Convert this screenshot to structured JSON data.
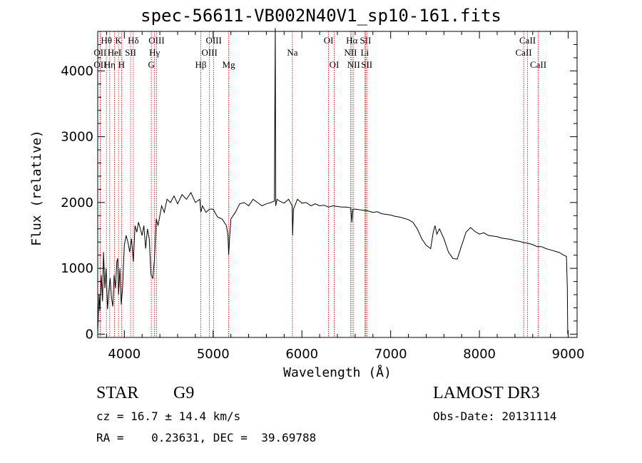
{
  "chart_data": {
    "type": "line",
    "title": "spec-56611-VB002N40V1_sp10-161.fits",
    "xlabel": "Wavelength (Å)",
    "ylabel": "Flux (relative)",
    "xlim": [
      3700,
      9100
    ],
    "ylim": [
      -50,
      4600
    ],
    "x_ticks": [
      4000,
      5000,
      6000,
      7000,
      8000,
      9000
    ],
    "y_ticks": [
      0,
      1000,
      2000,
      3000,
      4000
    ],
    "line_color": "#000000",
    "marker_color": "#cc0000",
    "series": [
      {
        "name": "spectrum",
        "points": [
          [
            3700,
            30
          ],
          [
            3715,
            600
          ],
          [
            3725,
            350
          ],
          [
            3740,
            900
          ],
          [
            3755,
            500
          ],
          [
            3765,
            1250
          ],
          [
            3780,
            700
          ],
          [
            3795,
            1000
          ],
          [
            3810,
            380
          ],
          [
            3825,
            650
          ],
          [
            3840,
            850
          ],
          [
            3855,
            550
          ],
          [
            3870,
            420
          ],
          [
            3885,
            900
          ],
          [
            3900,
            700
          ],
          [
            3915,
            1100
          ],
          [
            3925,
            1150
          ],
          [
            3935,
            600
          ],
          [
            3950,
            1000
          ],
          [
            3965,
            450
          ],
          [
            3980,
            700
          ],
          [
            4000,
            1350
          ],
          [
            4020,
            1500
          ],
          [
            4040,
            1400
          ],
          [
            4060,
            1250
          ],
          [
            4080,
            1450
          ],
          [
            4101,
            1100
          ],
          [
            4120,
            1650
          ],
          [
            4140,
            1550
          ],
          [
            4160,
            1700
          ],
          [
            4180,
            1600
          ],
          [
            4200,
            1500
          ],
          [
            4220,
            1650
          ],
          [
            4240,
            1300
          ],
          [
            4260,
            1600
          ],
          [
            4280,
            1450
          ],
          [
            4300,
            900
          ],
          [
            4320,
            850
          ],
          [
            4340,
            1150
          ],
          [
            4360,
            1750
          ],
          [
            4380,
            1650
          ],
          [
            4400,
            1800
          ],
          [
            4420,
            1950
          ],
          [
            4450,
            1850
          ],
          [
            4480,
            2050
          ],
          [
            4520,
            2000
          ],
          [
            4560,
            2100
          ],
          [
            4600,
            1980
          ],
          [
            4650,
            2120
          ],
          [
            4700,
            2050
          ],
          [
            4750,
            2150
          ],
          [
            4800,
            2000
          ],
          [
            4850,
            2050
          ],
          [
            4861,
            1850
          ],
          [
            4880,
            1950
          ],
          [
            4920,
            1850
          ],
          [
            4960,
            1900
          ],
          [
            5000,
            1900
          ],
          [
            5050,
            1780
          ],
          [
            5100,
            1750
          ],
          [
            5150,
            1650
          ],
          [
            5167,
            1500
          ],
          [
            5175,
            1200
          ],
          [
            5185,
            1450
          ],
          [
            5200,
            1750
          ],
          [
            5250,
            1850
          ],
          [
            5300,
            1980
          ],
          [
            5350,
            2000
          ],
          [
            5400,
            1950
          ],
          [
            5450,
            2050
          ],
          [
            5500,
            2000
          ],
          [
            5550,
            1950
          ],
          [
            5600,
            1980
          ],
          [
            5650,
            2000
          ],
          [
            5690,
            2020
          ],
          [
            5700,
            4650
          ],
          [
            5705,
            1950
          ],
          [
            5720,
            2050
          ],
          [
            5750,
            2020
          ],
          [
            5800,
            1990
          ],
          [
            5850,
            2050
          ],
          [
            5890,
            1950
          ],
          [
            5895,
            1500
          ],
          [
            5905,
            1900
          ],
          [
            5950,
            2050
          ],
          [
            6000,
            1990
          ],
          [
            6050,
            2000
          ],
          [
            6100,
            1950
          ],
          [
            6150,
            1980
          ],
          [
            6200,
            1950
          ],
          [
            6250,
            1960
          ],
          [
            6300,
            1930
          ],
          [
            6350,
            1950
          ],
          [
            6400,
            1940
          ],
          [
            6450,
            1930
          ],
          [
            6500,
            1930
          ],
          [
            6550,
            1920
          ],
          [
            6563,
            1700
          ],
          [
            6575,
            1900
          ],
          [
            6600,
            1900
          ],
          [
            6650,
            1890
          ],
          [
            6700,
            1880
          ],
          [
            6750,
            1870
          ],
          [
            6800,
            1850
          ],
          [
            6850,
            1860
          ],
          [
            6900,
            1830
          ],
          [
            6950,
            1820
          ],
          [
            7000,
            1810
          ],
          [
            7050,
            1790
          ],
          [
            7100,
            1780
          ],
          [
            7150,
            1760
          ],
          [
            7200,
            1740
          ],
          [
            7250,
            1700
          ],
          [
            7300,
            1600
          ],
          [
            7350,
            1450
          ],
          [
            7400,
            1350
          ],
          [
            7450,
            1300
          ],
          [
            7480,
            1550
          ],
          [
            7500,
            1650
          ],
          [
            7520,
            1520
          ],
          [
            7550,
            1600
          ],
          [
            7600,
            1450
          ],
          [
            7650,
            1250
          ],
          [
            7700,
            1150
          ],
          [
            7750,
            1140
          ],
          [
            7800,
            1350
          ],
          [
            7850,
            1550
          ],
          [
            7900,
            1620
          ],
          [
            7950,
            1560
          ],
          [
            8000,
            1520
          ],
          [
            8050,
            1540
          ],
          [
            8100,
            1500
          ],
          [
            8150,
            1490
          ],
          [
            8200,
            1480
          ],
          [
            8250,
            1460
          ],
          [
            8300,
            1450
          ],
          [
            8350,
            1440
          ],
          [
            8400,
            1420
          ],
          [
            8450,
            1410
          ],
          [
            8500,
            1390
          ],
          [
            8550,
            1380
          ],
          [
            8600,
            1360
          ],
          [
            8650,
            1330
          ],
          [
            8700,
            1330
          ],
          [
            8750,
            1300
          ],
          [
            8800,
            1280
          ],
          [
            8850,
            1260
          ],
          [
            8900,
            1240
          ],
          [
            8950,
            1200
          ],
          [
            8980,
            1180
          ],
          [
            8990,
            700
          ],
          [
            8995,
            0
          ]
        ]
      }
    ],
    "line_markers": [
      {
        "label": "Hθ",
        "x": 3798,
        "row": 1
      },
      {
        "label": "OII",
        "x": 3727,
        "row": 2
      },
      {
        "label": "OII",
        "x": 3727,
        "row": 3
      },
      {
        "label": "Hη",
        "x": 3835,
        "row": 3
      },
      {
        "label": "K",
        "x": 3934,
        "row": 1
      },
      {
        "label": "HeI",
        "x": 3889,
        "row": 2
      },
      {
        "label": "H",
        "x": 3968,
        "row": 3
      },
      {
        "label": "Hδ",
        "x": 4101,
        "row": 1
      },
      {
        "label": "SII",
        "x": 4070,
        "row": 2
      },
      {
        "label": "OIII",
        "x": 4363,
        "row": 1
      },
      {
        "label": "Hγ",
        "x": 4340,
        "row": 2
      },
      {
        "label": "G",
        "x": 4304,
        "row": 3
      },
      {
        "label": "OIII",
        "x": 5007,
        "row": 1
      },
      {
        "label": "OIII",
        "x": 4959,
        "row": 2
      },
      {
        "label": "Hβ",
        "x": 4861,
        "row": 3
      },
      {
        "label": "Mg",
        "x": 5175,
        "row": 3
      },
      {
        "label": "Na",
        "x": 5893,
        "row": 2
      },
      {
        "label": "OI",
        "x": 6300,
        "row": 1
      },
      {
        "label": "OI",
        "x": 6364,
        "row": 3
      },
      {
        "label": "Hα",
        "x": 6563,
        "row": 1
      },
      {
        "label": "SII",
        "x": 6717,
        "row": 1
      },
      {
        "label": "NII",
        "x": 6548,
        "row": 2
      },
      {
        "label": "Li",
        "x": 6708,
        "row": 2
      },
      {
        "label": "NII",
        "x": 6583,
        "row": 3
      },
      {
        "label": "SII",
        "x": 6731,
        "row": 3
      },
      {
        "label": "CaII",
        "x": 8542,
        "row": 1
      },
      {
        "label": "CaII",
        "x": 8498,
        "row": 2
      },
      {
        "label": "CaII",
        "x": 8662,
        "row": 3
      }
    ]
  },
  "info": {
    "class": "STAR",
    "subclass": "G9",
    "survey": "LAMOST DR3",
    "cz": "cz = 16.7 ± 14.4 km/s",
    "obs_date": "Obs-Date: 20131114",
    "coords": "RA =    0.23631, DEC =  39.69788"
  }
}
